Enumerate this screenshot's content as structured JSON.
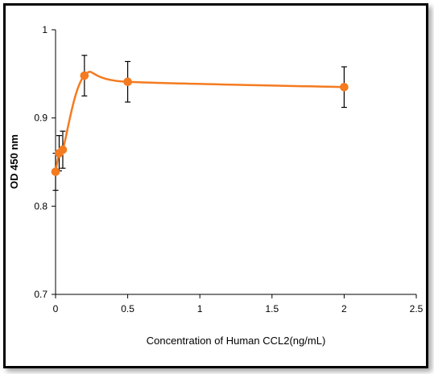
{
  "chart_data": {
    "type": "line",
    "title": "",
    "xlabel": "Concentration of Human CCL2(ng/mL)",
    "ylabel": "OD 450 nm",
    "xlim": [
      0,
      2.5
    ],
    "ylim": [
      0.7,
      1.0
    ],
    "x_ticks": [
      0,
      0.5,
      1,
      1.5,
      2,
      2.5
    ],
    "x_tick_labels": [
      "0",
      "0.5",
      "1",
      "1.5",
      "2",
      "2.5"
    ],
    "y_ticks": [
      0.7,
      0.8,
      0.9,
      1.0
    ],
    "y_tick_labels": [
      "0.7",
      "0.8",
      "0.9",
      "1"
    ],
    "grid": false,
    "line_color": "#f47b20",
    "error_bar_color": "#000000",
    "series": [
      {
        "x": [
          0.0,
          0.025,
          0.05,
          0.2,
          0.5,
          2.0
        ],
        "y": [
          0.839,
          0.86,
          0.864,
          0.948,
          0.941,
          0.935
        ],
        "err": [
          0.021,
          0.02,
          0.021,
          0.023,
          0.023,
          0.023
        ]
      }
    ]
  }
}
